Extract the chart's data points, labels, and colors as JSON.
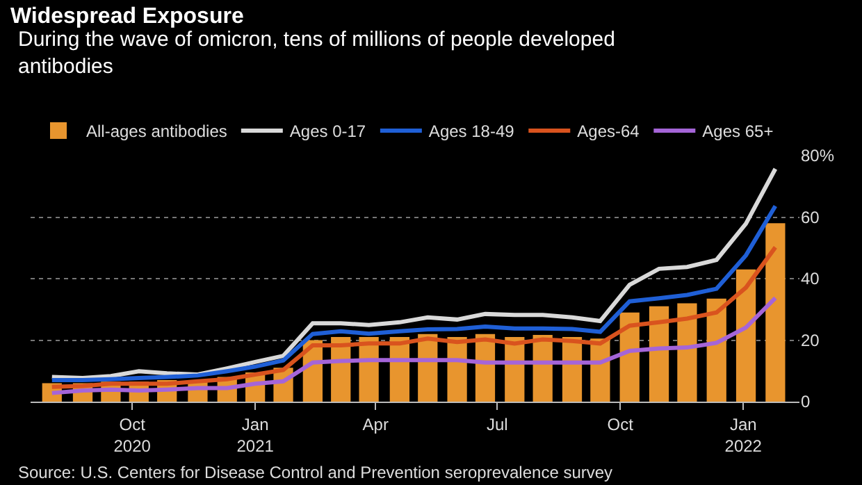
{
  "chart_data": {
    "type": "bar",
    "title": "Widespread Exposure",
    "subtitle": "During the wave of omicron, tens of millions of people developed antibodies",
    "x": [
      "2020-08-02",
      "2020-08-25",
      "2020-09-15",
      "2020-10-06",
      "2020-10-27",
      "2020-11-19",
      "2020-12-11",
      "2021-01-01",
      "2021-01-22",
      "2021-02-13",
      "2021-03-06",
      "2021-03-27",
      "2021-04-19",
      "2021-05-10",
      "2021-06-01",
      "2021-06-22",
      "2021-07-14",
      "2021-08-04",
      "2021-08-26",
      "2021-09-16",
      "2021-10-08",
      "2021-10-30",
      "2021-11-20",
      "2021-12-12",
      "2022-01-03",
      "2022-01-25"
    ],
    "series": [
      {
        "name": "All-ages antibodies",
        "color": "#e8952e",
        "values": [
          6,
          6,
          6.5,
          6.5,
          7,
          7,
          8,
          9.5,
          11,
          20,
          21,
          21,
          21,
          22,
          21,
          22,
          21,
          21.7,
          21,
          20.5,
          29,
          31,
          32,
          33.5,
          43,
          58
        ]
      },
      {
        "name": "Ages 0-17",
        "type": "line",
        "color": "#d9d9d9",
        "values": [
          8,
          7.7,
          8.3,
          9.9,
          9.2,
          8.8,
          10.8,
          12.9,
          14.9,
          25.5,
          25.5,
          24.9,
          25.8,
          27.4,
          26.7,
          28.5,
          28.2,
          28.2,
          27.4,
          26.2,
          38,
          43.2,
          43.8,
          46.1,
          57.9,
          75.7
        ]
      },
      {
        "name": "Ages 18-49",
        "type": "line",
        "color": "#1f5fd6",
        "values": [
          7,
          7,
          7.3,
          7.7,
          8,
          8.5,
          9.9,
          11.4,
          13.4,
          22,
          22.9,
          22.1,
          22.9,
          23.5,
          23.6,
          24.4,
          23.8,
          23.8,
          23.6,
          22.7,
          32.6,
          33.6,
          34.7,
          36.7,
          47.6,
          63.6
        ]
      },
      {
        "name": "Ages-64",
        "type": "line",
        "color": "#d9531e",
        "values": [
          4.8,
          5.1,
          5.8,
          5.8,
          5.8,
          6.6,
          7.3,
          8.8,
          10.3,
          18.3,
          18.3,
          18.9,
          18.9,
          20.5,
          19.4,
          20.2,
          18.9,
          20.2,
          19.7,
          18.9,
          24.7,
          25.8,
          27,
          29,
          37.1,
          50.2
        ]
      },
      {
        "name": "Ages 65+",
        "type": "line",
        "color": "#a565d8",
        "values": [
          2.8,
          3.6,
          3.9,
          3.6,
          3.9,
          4.4,
          4.4,
          5.8,
          6.6,
          12.7,
          13.2,
          13.5,
          13.5,
          13.5,
          13.5,
          12.7,
          12.7,
          12.7,
          12.7,
          12.7,
          16.5,
          17.3,
          17.6,
          19.1,
          24.1,
          33.7
        ]
      }
    ],
    "xlim": [
      "2020-07-17",
      "2022-02-12"
    ],
    "xticks": [
      {
        "value": "2020-10-01",
        "label": "Oct\n2020"
      },
      {
        "value": "2021-01-01",
        "label": "Jan\n2021"
      },
      {
        "value": "2021-04-01",
        "label": "Apr"
      },
      {
        "value": "2021-07-01",
        "label": "Jul"
      },
      {
        "value": "2021-10-01",
        "label": "Oct"
      },
      {
        "value": "2022-01-01",
        "label": "Jan\n2022"
      }
    ],
    "ylim": [
      0,
      80
    ],
    "yticks": [
      0,
      20,
      40,
      60,
      {
        "value": 80,
        "label": "80%"
      }
    ],
    "grid": "y",
    "legend": "top left",
    "line_style": "solid",
    "annotations": [
      "Source: U.S. Centers for Disease Control and Prevention seroprevalence survey"
    ]
  }
}
